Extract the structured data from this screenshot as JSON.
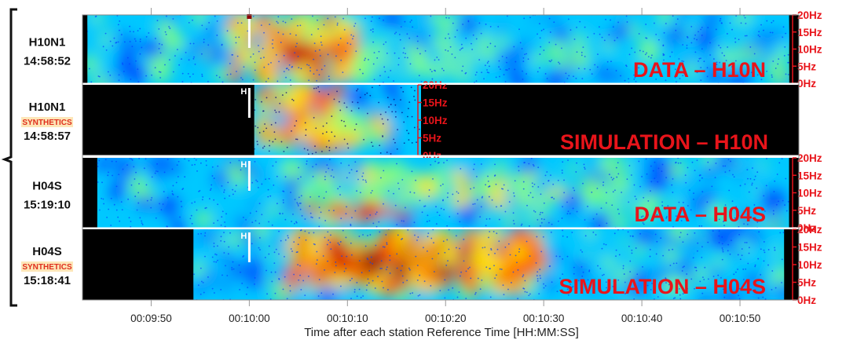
{
  "chart_data": {
    "type": "heatmap",
    "xlabel": "Time after each station Reference Time [HH:MM:SS]",
    "x_ticks": [
      "00:09:50",
      "00:10:00",
      "00:10:10",
      "00:10:20",
      "00:10:30",
      "00:10:40",
      "00:10:50"
    ],
    "x_tick_seconds": [
      590,
      600,
      610,
      620,
      630,
      640,
      650
    ],
    "xlim_seconds": [
      583,
      656
    ],
    "y_ticks": [
      "0Hz",
      "5Hz",
      "10Hz",
      "15Hz",
      "20Hz"
    ],
    "y_tick_values": [
      0,
      5,
      10,
      15,
      20
    ],
    "ylim": [
      0,
      20
    ],
    "colormap": [
      "#00007f",
      "#0040ff",
      "#00c8ff",
      "#7fff7f",
      "#ffe000",
      "#ff5a00",
      "#c80000",
      "#7f0000"
    ],
    "panels": [
      {
        "station": "H10N1",
        "time": "14:58:52",
        "synthetics_label": "",
        "title": "DATA – H10N",
        "marker": "",
        "data_start_s": 583.5,
        "data_end_s": 655,
        "events": [
          {
            "t0": 598,
            "t1": 611,
            "f0": 0.5,
            "f1": 19,
            "level": 0.75
          },
          {
            "t0": 604,
            "t1": 607,
            "f0": 7,
            "f1": 12,
            "level": 1.0
          },
          {
            "t0": 611,
            "t1": 625,
            "f0": 3,
            "f1": 13,
            "level": 0.45
          }
        ]
      },
      {
        "station": "H10N1",
        "time": "14:58:57",
        "synthetics_label": "SYNTHETICS",
        "title": "SIMULATION – H10N",
        "marker": "H",
        "data_start_s": 600.5,
        "data_end_s": 617.5,
        "events": [
          {
            "t0": 601,
            "t1": 610,
            "f0": 2,
            "f1": 20,
            "level": 0.8
          },
          {
            "t0": 608,
            "t1": 614,
            "f0": 3,
            "f1": 10,
            "level": 0.6
          }
        ]
      },
      {
        "station": "H04S",
        "time": "15:19:10",
        "synthetics_label": "",
        "title": "DATA – H04S",
        "marker": "H",
        "data_start_s": 584.5,
        "data_end_s": 655,
        "events": [
          {
            "t0": 605,
            "t1": 632,
            "f0": 7,
            "f1": 15,
            "level": 0.55
          },
          {
            "t0": 606,
            "t1": 616,
            "f0": 3,
            "f1": 6,
            "level": 0.9
          }
        ]
      },
      {
        "station": "H04S",
        "time": "15:18:41",
        "synthetics_label": "SYNTHETICS",
        "title": "SIMULATION – H04S",
        "marker": "H",
        "data_start_s": 594.3,
        "data_end_s": 654.5,
        "events": [
          {
            "t0": 604,
            "t1": 630,
            "f0": 3,
            "f1": 20,
            "level": 0.8
          },
          {
            "t0": 606,
            "t1": 616,
            "f0": 7,
            "f1": 16,
            "level": 1.0
          }
        ]
      }
    ]
  }
}
